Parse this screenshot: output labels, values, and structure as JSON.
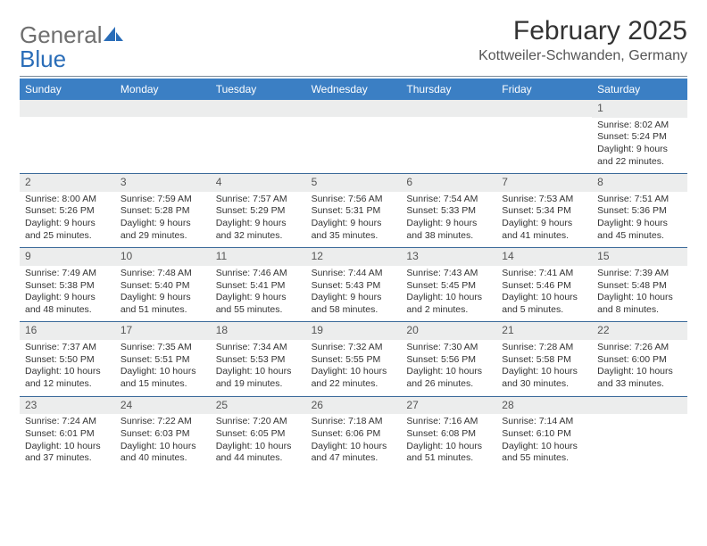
{
  "brand": {
    "word1": "General",
    "word2": "Blue"
  },
  "title": "February 2025",
  "location": "Kottweiler-Schwanden, Germany",
  "colors": {
    "header_bg": "#3b7fc4",
    "header_text": "#ffffff",
    "daynum_bg": "#eceded",
    "divider": "#3b6a9a",
    "brand_gray": "#6e6e6e",
    "brand_blue": "#2a6db8"
  },
  "day_headers": [
    "Sunday",
    "Monday",
    "Tuesday",
    "Wednesday",
    "Thursday",
    "Friday",
    "Saturday"
  ],
  "weeks": [
    [
      null,
      null,
      null,
      null,
      null,
      null,
      {
        "n": "1",
        "sunrise": "Sunrise: 8:02 AM",
        "sunset": "Sunset: 5:24 PM",
        "day1": "Daylight: 9 hours",
        "day2": "and 22 minutes."
      }
    ],
    [
      {
        "n": "2",
        "sunrise": "Sunrise: 8:00 AM",
        "sunset": "Sunset: 5:26 PM",
        "day1": "Daylight: 9 hours",
        "day2": "and 25 minutes."
      },
      {
        "n": "3",
        "sunrise": "Sunrise: 7:59 AM",
        "sunset": "Sunset: 5:28 PM",
        "day1": "Daylight: 9 hours",
        "day2": "and 29 minutes."
      },
      {
        "n": "4",
        "sunrise": "Sunrise: 7:57 AM",
        "sunset": "Sunset: 5:29 PM",
        "day1": "Daylight: 9 hours",
        "day2": "and 32 minutes."
      },
      {
        "n": "5",
        "sunrise": "Sunrise: 7:56 AM",
        "sunset": "Sunset: 5:31 PM",
        "day1": "Daylight: 9 hours",
        "day2": "and 35 minutes."
      },
      {
        "n": "6",
        "sunrise": "Sunrise: 7:54 AM",
        "sunset": "Sunset: 5:33 PM",
        "day1": "Daylight: 9 hours",
        "day2": "and 38 minutes."
      },
      {
        "n": "7",
        "sunrise": "Sunrise: 7:53 AM",
        "sunset": "Sunset: 5:34 PM",
        "day1": "Daylight: 9 hours",
        "day2": "and 41 minutes."
      },
      {
        "n": "8",
        "sunrise": "Sunrise: 7:51 AM",
        "sunset": "Sunset: 5:36 PM",
        "day1": "Daylight: 9 hours",
        "day2": "and 45 minutes."
      }
    ],
    [
      {
        "n": "9",
        "sunrise": "Sunrise: 7:49 AM",
        "sunset": "Sunset: 5:38 PM",
        "day1": "Daylight: 9 hours",
        "day2": "and 48 minutes."
      },
      {
        "n": "10",
        "sunrise": "Sunrise: 7:48 AM",
        "sunset": "Sunset: 5:40 PM",
        "day1": "Daylight: 9 hours",
        "day2": "and 51 minutes."
      },
      {
        "n": "11",
        "sunrise": "Sunrise: 7:46 AM",
        "sunset": "Sunset: 5:41 PM",
        "day1": "Daylight: 9 hours",
        "day2": "and 55 minutes."
      },
      {
        "n": "12",
        "sunrise": "Sunrise: 7:44 AM",
        "sunset": "Sunset: 5:43 PM",
        "day1": "Daylight: 9 hours",
        "day2": "and 58 minutes."
      },
      {
        "n": "13",
        "sunrise": "Sunrise: 7:43 AM",
        "sunset": "Sunset: 5:45 PM",
        "day1": "Daylight: 10 hours",
        "day2": "and 2 minutes."
      },
      {
        "n": "14",
        "sunrise": "Sunrise: 7:41 AM",
        "sunset": "Sunset: 5:46 PM",
        "day1": "Daylight: 10 hours",
        "day2": "and 5 minutes."
      },
      {
        "n": "15",
        "sunrise": "Sunrise: 7:39 AM",
        "sunset": "Sunset: 5:48 PM",
        "day1": "Daylight: 10 hours",
        "day2": "and 8 minutes."
      }
    ],
    [
      {
        "n": "16",
        "sunrise": "Sunrise: 7:37 AM",
        "sunset": "Sunset: 5:50 PM",
        "day1": "Daylight: 10 hours",
        "day2": "and 12 minutes."
      },
      {
        "n": "17",
        "sunrise": "Sunrise: 7:35 AM",
        "sunset": "Sunset: 5:51 PM",
        "day1": "Daylight: 10 hours",
        "day2": "and 15 minutes."
      },
      {
        "n": "18",
        "sunrise": "Sunrise: 7:34 AM",
        "sunset": "Sunset: 5:53 PM",
        "day1": "Daylight: 10 hours",
        "day2": "and 19 minutes."
      },
      {
        "n": "19",
        "sunrise": "Sunrise: 7:32 AM",
        "sunset": "Sunset: 5:55 PM",
        "day1": "Daylight: 10 hours",
        "day2": "and 22 minutes."
      },
      {
        "n": "20",
        "sunrise": "Sunrise: 7:30 AM",
        "sunset": "Sunset: 5:56 PM",
        "day1": "Daylight: 10 hours",
        "day2": "and 26 minutes."
      },
      {
        "n": "21",
        "sunrise": "Sunrise: 7:28 AM",
        "sunset": "Sunset: 5:58 PM",
        "day1": "Daylight: 10 hours",
        "day2": "and 30 minutes."
      },
      {
        "n": "22",
        "sunrise": "Sunrise: 7:26 AM",
        "sunset": "Sunset: 6:00 PM",
        "day1": "Daylight: 10 hours",
        "day2": "and 33 minutes."
      }
    ],
    [
      {
        "n": "23",
        "sunrise": "Sunrise: 7:24 AM",
        "sunset": "Sunset: 6:01 PM",
        "day1": "Daylight: 10 hours",
        "day2": "and 37 minutes."
      },
      {
        "n": "24",
        "sunrise": "Sunrise: 7:22 AM",
        "sunset": "Sunset: 6:03 PM",
        "day1": "Daylight: 10 hours",
        "day2": "and 40 minutes."
      },
      {
        "n": "25",
        "sunrise": "Sunrise: 7:20 AM",
        "sunset": "Sunset: 6:05 PM",
        "day1": "Daylight: 10 hours",
        "day2": "and 44 minutes."
      },
      {
        "n": "26",
        "sunrise": "Sunrise: 7:18 AM",
        "sunset": "Sunset: 6:06 PM",
        "day1": "Daylight: 10 hours",
        "day2": "and 47 minutes."
      },
      {
        "n": "27",
        "sunrise": "Sunrise: 7:16 AM",
        "sunset": "Sunset: 6:08 PM",
        "day1": "Daylight: 10 hours",
        "day2": "and 51 minutes."
      },
      {
        "n": "28",
        "sunrise": "Sunrise: 7:14 AM",
        "sunset": "Sunset: 6:10 PM",
        "day1": "Daylight: 10 hours",
        "day2": "and 55 minutes."
      },
      null
    ]
  ]
}
